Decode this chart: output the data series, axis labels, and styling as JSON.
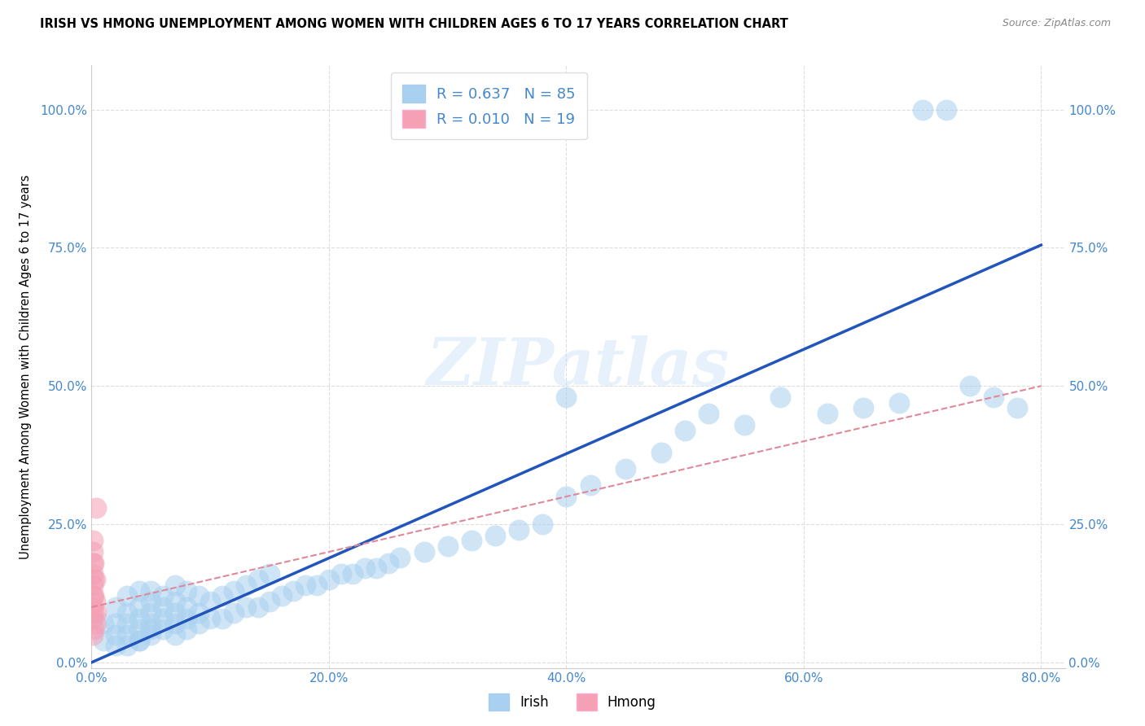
{
  "title": "IRISH VS HMONG UNEMPLOYMENT AMONG WOMEN WITH CHILDREN AGES 6 TO 17 YEARS CORRELATION CHART",
  "source": "Source: ZipAtlas.com",
  "ylabel": "Unemployment Among Women with Children Ages 6 to 17 years",
  "xlim": [
    0.0,
    0.82
  ],
  "ylim": [
    -0.01,
    1.08
  ],
  "yticks": [
    0.0,
    0.25,
    0.5,
    0.75,
    1.0
  ],
  "xticks": [
    0.0,
    0.2,
    0.4,
    0.6,
    0.8
  ],
  "irish_color": "#A8D0F0",
  "hmong_color": "#F4A0B5",
  "irish_line_color": "#2255BB",
  "hmong_line_color": "#E08898",
  "tick_color": "#4488CC",
  "irish_R": 0.637,
  "irish_N": 85,
  "hmong_R": 0.01,
  "hmong_N": 19,
  "irish_line_x": [
    0.0,
    0.8
  ],
  "irish_line_y": [
    0.0,
    0.755
  ],
  "hmong_line_x": [
    0.0,
    0.8
  ],
  "hmong_line_y": [
    0.1,
    0.5
  ],
  "irish_x": [
    0.01,
    0.01,
    0.02,
    0.02,
    0.02,
    0.02,
    0.03,
    0.03,
    0.03,
    0.03,
    0.03,
    0.04,
    0.04,
    0.04,
    0.04,
    0.04,
    0.04,
    0.05,
    0.05,
    0.05,
    0.05,
    0.05,
    0.05,
    0.06,
    0.06,
    0.06,
    0.06,
    0.07,
    0.07,
    0.07,
    0.07,
    0.07,
    0.08,
    0.08,
    0.08,
    0.08,
    0.09,
    0.09,
    0.09,
    0.1,
    0.1,
    0.11,
    0.11,
    0.12,
    0.12,
    0.13,
    0.13,
    0.14,
    0.14,
    0.15,
    0.15,
    0.16,
    0.17,
    0.18,
    0.19,
    0.2,
    0.21,
    0.22,
    0.23,
    0.24,
    0.25,
    0.26,
    0.28,
    0.3,
    0.32,
    0.34,
    0.36,
    0.38,
    0.4,
    0.4,
    0.42,
    0.45,
    0.48,
    0.5,
    0.52,
    0.55,
    0.58,
    0.62,
    0.65,
    0.68,
    0.7,
    0.72,
    0.74,
    0.76,
    0.78
  ],
  "irish_y": [
    0.04,
    0.07,
    0.03,
    0.05,
    0.07,
    0.1,
    0.03,
    0.05,
    0.07,
    0.09,
    0.12,
    0.04,
    0.06,
    0.08,
    0.1,
    0.13,
    0.04,
    0.05,
    0.07,
    0.09,
    0.11,
    0.13,
    0.06,
    0.06,
    0.08,
    0.1,
    0.12,
    0.05,
    0.07,
    0.09,
    0.11,
    0.14,
    0.06,
    0.08,
    0.1,
    0.13,
    0.07,
    0.09,
    0.12,
    0.08,
    0.11,
    0.08,
    0.12,
    0.09,
    0.13,
    0.1,
    0.14,
    0.1,
    0.15,
    0.11,
    0.16,
    0.12,
    0.13,
    0.14,
    0.14,
    0.15,
    0.16,
    0.16,
    0.17,
    0.17,
    0.18,
    0.19,
    0.2,
    0.21,
    0.22,
    0.23,
    0.24,
    0.25,
    0.3,
    0.48,
    0.32,
    0.35,
    0.38,
    0.42,
    0.45,
    0.43,
    0.48,
    0.45,
    0.46,
    0.47,
    1.0,
    1.0,
    0.5,
    0.48,
    0.46
  ],
  "hmong_x": [
    0.001,
    0.001,
    0.001,
    0.001,
    0.001,
    0.001,
    0.001,
    0.001,
    0.001,
    0.002,
    0.002,
    0.002,
    0.002,
    0.002,
    0.003,
    0.003,
    0.003,
    0.004,
    0.004
  ],
  "hmong_y": [
    0.05,
    0.08,
    0.1,
    0.12,
    0.14,
    0.16,
    0.18,
    0.2,
    0.22,
    0.06,
    0.09,
    0.12,
    0.15,
    0.18,
    0.07,
    0.11,
    0.15,
    0.09,
    0.28
  ],
  "watermark_text": "ZIPatlas",
  "background_color": "#FFFFFF",
  "grid_color": "#DDDDDD"
}
